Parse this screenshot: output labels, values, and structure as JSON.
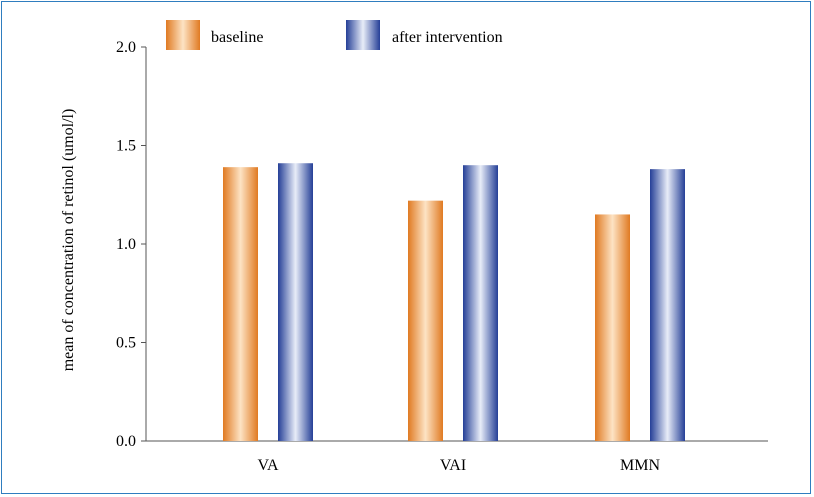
{
  "chart_data": {
    "type": "bar",
    "categories": [
      "VA",
      "VAI",
      "MMN"
    ],
    "series": [
      {
        "name": "baseline",
        "values": [
          1.39,
          1.22,
          1.15
        ]
      },
      {
        "name": "after intervention",
        "values": [
          1.41,
          1.4,
          1.38
        ]
      }
    ],
    "ylabel": "mean of concentration of retinol (umol/l)",
    "xlabel": "",
    "ylim": [
      0,
      2.0
    ],
    "yticks": [
      "0.0",
      "0.5",
      "1.0",
      "1.5",
      "2.0"
    ],
    "ytick_values": [
      0,
      0.5,
      1.0,
      1.5,
      2.0
    ],
    "grid": false,
    "legend_position": "top-center",
    "colors": {
      "baseline": "#e8852a",
      "after_intervention": "#2e4fa8",
      "frame": "#2f7dbf"
    }
  }
}
